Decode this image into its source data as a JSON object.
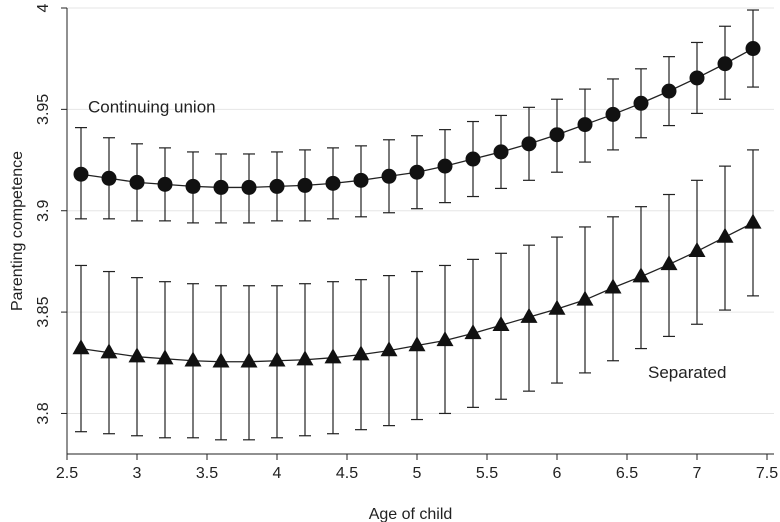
{
  "chart_data": {
    "type": "line",
    "xlabel": "Age of child",
    "ylabel": "Parenting competence",
    "xlim": [
      2.5,
      7.55
    ],
    "ylim": [
      3.78,
      4.0
    ],
    "x_ticks": [
      2.5,
      3,
      3.5,
      4,
      4.5,
      5,
      5.5,
      6,
      6.5,
      7,
      7.5
    ],
    "x_tick_labels": [
      "2.5",
      "3",
      "3.5",
      "4",
      "4.5",
      "5",
      "5.5",
      "6",
      "6.5",
      "7",
      "7.5"
    ],
    "y_ticks": [
      3.8,
      3.85,
      3.9,
      3.95,
      4.0
    ],
    "y_tick_labels": [
      "3.8",
      "3.85",
      "3.9",
      "3.95",
      "4"
    ],
    "grid": "horizontal",
    "legend": "none",
    "x": [
      2.6,
      2.8,
      3.0,
      3.2,
      3.4,
      3.6,
      3.8,
      4.0,
      4.2,
      4.4,
      4.6,
      4.8,
      5.0,
      5.2,
      5.4,
      5.6,
      5.8,
      6.0,
      6.2,
      6.4,
      6.6,
      6.8,
      7.0,
      7.2,
      7.4
    ],
    "series": [
      {
        "marker": "circle",
        "values": [
          3.918,
          3.916,
          3.914,
          3.913,
          3.912,
          3.9115,
          3.9115,
          3.912,
          3.9125,
          3.9135,
          3.915,
          3.917,
          3.919,
          3.922,
          3.9255,
          3.929,
          3.933,
          3.9375,
          3.9425,
          3.9475,
          3.953,
          3.959,
          3.9655,
          3.9725,
          3.98
        ],
        "lower": [
          3.896,
          3.896,
          3.895,
          3.895,
          3.894,
          3.894,
          3.894,
          3.895,
          3.895,
          3.896,
          3.897,
          3.899,
          3.901,
          3.904,
          3.907,
          3.911,
          3.915,
          3.919,
          3.924,
          3.93,
          3.936,
          3.942,
          3.948,
          3.955,
          3.961
        ],
        "upper": [
          3.941,
          3.936,
          3.933,
          3.931,
          3.929,
          3.928,
          3.928,
          3.929,
          3.93,
          3.931,
          3.932,
          3.935,
          3.937,
          3.94,
          3.944,
          3.947,
          3.951,
          3.955,
          3.96,
          3.965,
          3.97,
          3.976,
          3.983,
          3.991,
          3.999
        ]
      },
      {
        "marker": "triangle",
        "values": [
          3.832,
          3.83,
          3.828,
          3.827,
          3.826,
          3.8255,
          3.8255,
          3.826,
          3.8265,
          3.8275,
          3.829,
          3.831,
          3.8335,
          3.836,
          3.8395,
          3.8435,
          3.8475,
          3.8515,
          3.856,
          3.862,
          3.8675,
          3.8735,
          3.88,
          3.887,
          3.894
        ],
        "lower": [
          3.791,
          3.79,
          3.789,
          3.788,
          3.788,
          3.787,
          3.787,
          3.788,
          3.789,
          3.79,
          3.792,
          3.794,
          3.797,
          3.8,
          3.803,
          3.807,
          3.811,
          3.815,
          3.82,
          3.826,
          3.832,
          3.838,
          3.844,
          3.851,
          3.858
        ],
        "upper": [
          3.873,
          3.87,
          3.867,
          3.865,
          3.864,
          3.863,
          3.863,
          3.863,
          3.864,
          3.865,
          3.866,
          3.868,
          3.87,
          3.873,
          3.876,
          3.879,
          3.883,
          3.887,
          3.892,
          3.897,
          3.902,
          3.908,
          3.915,
          3.922,
          3.93
        ]
      }
    ],
    "annotations": [
      {
        "text": "Continuing union",
        "x": 2.65,
        "y": 3.9485
      },
      {
        "text": "Separated",
        "x": 6.65,
        "y": 3.8175
      }
    ],
    "colors": {
      "line": "#222222",
      "marker": "#111111",
      "grid": "#e6e6e6",
      "axis": "#222222"
    }
  }
}
